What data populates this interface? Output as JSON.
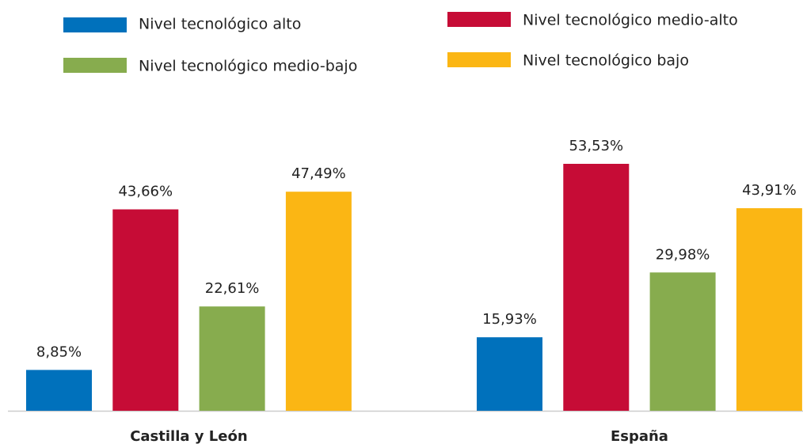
{
  "chart_data": {
    "type": "bar",
    "categories": [
      "Castilla y León",
      "España"
    ],
    "series": [
      {
        "name": "Nivel tecnológico alto",
        "color": "#0071bc",
        "values": [
          8.85,
          15.93
        ],
        "value_labels": [
          "8,85%",
          "15,93%"
        ]
      },
      {
        "name": "Nivel tecnológico medio-alto",
        "color": "#c60c36",
        "values": [
          43.66,
          53.53
        ],
        "value_labels": [
          "43,66%",
          "53,53%"
        ]
      },
      {
        "name": "Nivel tecnológico medio-bajo",
        "color": "#87ac4e",
        "values": [
          22.61,
          29.98
        ],
        "value_labels": [
          "22,61%",
          "29,98%"
        ]
      },
      {
        "name": "Nivel tecnológico bajo",
        "color": "#fbb614",
        "values": [
          47.49,
          43.91
        ],
        "value_labels": [
          "47,49%",
          "43,91%"
        ]
      }
    ]
  }
}
